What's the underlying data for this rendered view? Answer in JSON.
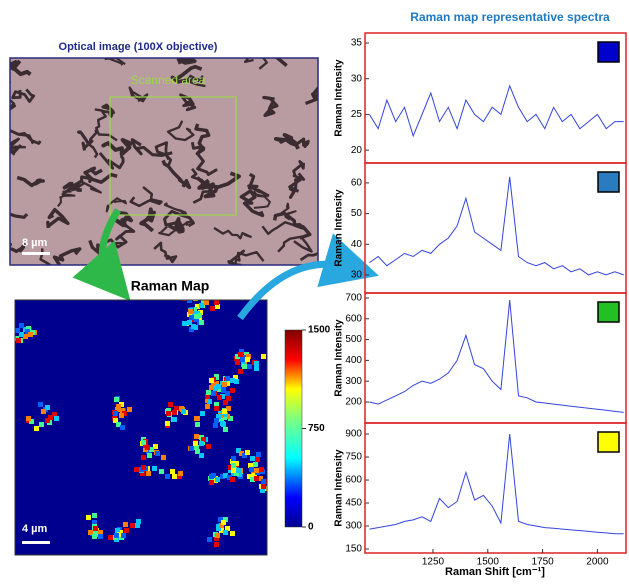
{
  "optical": {
    "title": "Optical image (100X objective)",
    "annotation": "Scanned area",
    "scale_bar": "8 µm"
  },
  "raman_map": {
    "title": "Raman Map",
    "scale_bar": "4 µm",
    "colorbar": {
      "lim": [
        0,
        1500
      ],
      "ticks": [
        1500,
        750,
        0
      ]
    }
  },
  "spectra": {
    "title": "Raman map representative spectra",
    "x_label": "Raman Shift [cm⁻¹]",
    "y_label": "Raman Intensity",
    "xlim": [
      940,
      2135
    ],
    "xticks": [
      1250,
      1500,
      1750,
      2000
    ],
    "x": [
      960,
      1000,
      1040,
      1080,
      1120,
      1160,
      1200,
      1240,
      1280,
      1320,
      1360,
      1400,
      1440,
      1480,
      1520,
      1560,
      1600,
      1640,
      1680,
      1720,
      1760,
      1800,
      1840,
      1880,
      1920,
      1960,
      2000,
      2040,
      2080,
      2120
    ],
    "panels": [
      {
        "color": "#0000cc",
        "ylim": [
          18.2,
          36.4
        ],
        "yticks": [
          20,
          25,
          30,
          35
        ],
        "values": [
          25,
          23,
          27,
          24,
          26,
          22,
          25,
          28,
          24,
          26,
          23,
          27,
          25,
          24,
          26,
          25,
          29,
          26,
          24,
          25,
          23,
          26,
          24,
          25,
          23,
          24,
          25,
          23,
          24,
          24
        ]
      },
      {
        "color": "#2a7bc0",
        "ylim": [
          24.1,
          66.5
        ],
        "yticks": [
          30,
          40,
          50,
          60
        ],
        "values": [
          34,
          36,
          33,
          35,
          37,
          36,
          38,
          37,
          40,
          42,
          46,
          55,
          44,
          42,
          40,
          38,
          62,
          36,
          34,
          33,
          34,
          32,
          33,
          31,
          32,
          30,
          31,
          30,
          31,
          30
        ]
      },
      {
        "color": "#22c022",
        "ylim": [
          99,
          724
        ],
        "yticks": [
          200,
          300,
          400,
          500,
          600,
          700
        ],
        "values": [
          200,
          190,
          210,
          230,
          250,
          280,
          300,
          290,
          310,
          340,
          400,
          520,
          380,
          360,
          300,
          260,
          690,
          230,
          220,
          200,
          195,
          190,
          185,
          180,
          175,
          170,
          165,
          160,
          155,
          150
        ]
      },
      {
        "color": "#ffff00",
        "ylim": [
          124,
          972
        ],
        "yticks": [
          150,
          300,
          450,
          600,
          750,
          900
        ],
        "values": [
          280,
          290,
          300,
          310,
          330,
          340,
          360,
          330,
          480,
          420,
          460,
          650,
          470,
          500,
          430,
          320,
          900,
          330,
          310,
          300,
          290,
          285,
          280,
          275,
          270,
          265,
          260,
          255,
          250,
          250
        ]
      }
    ]
  }
}
